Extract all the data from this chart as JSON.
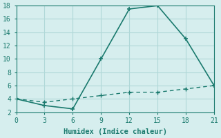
{
  "line1_x": [
    0,
    3,
    6,
    9,
    12,
    15,
    18,
    21
  ],
  "line1_y": [
    4,
    3,
    2.5,
    10,
    17.5,
    18,
    13,
    6
  ],
  "line2_x": [
    0,
    3,
    6,
    9,
    12,
    15,
    18,
    21
  ],
  "line2_y": [
    4,
    3.5,
    4,
    4.5,
    5,
    5,
    5.5,
    6
  ],
  "color": "#1a7a6e",
  "bg_color": "#d6eeee",
  "grid_color": "#b0d8d8",
  "xlabel": "Humidex (Indice chaleur)",
  "xlim": [
    0,
    21
  ],
  "ylim": [
    2,
    18
  ],
  "xticks": [
    0,
    3,
    6,
    9,
    12,
    15,
    18,
    21
  ],
  "yticks": [
    2,
    4,
    6,
    8,
    10,
    12,
    14,
    16,
    18
  ]
}
